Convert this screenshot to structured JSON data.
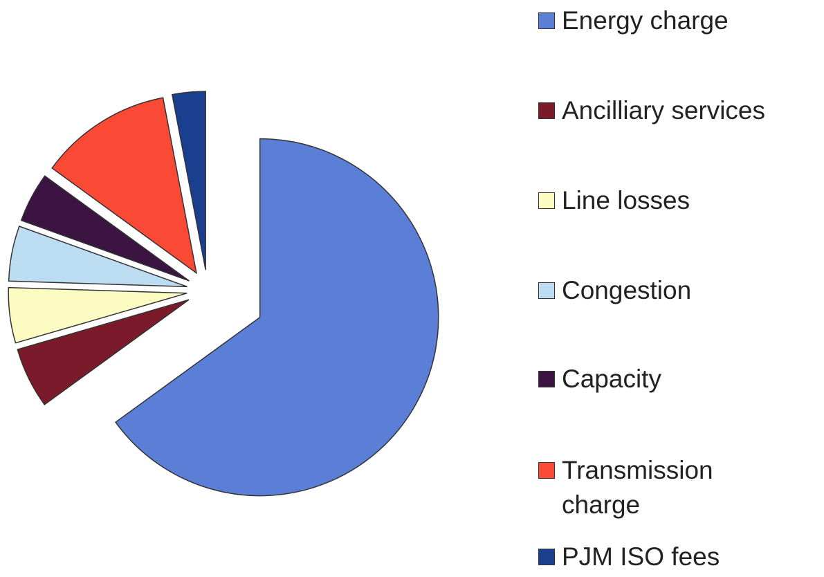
{
  "chart_data": {
    "type": "pie",
    "categories": [
      "Energy charge",
      "Ancilliary services",
      "Line losses",
      "Congestion",
      "Capacity",
      "Transmission charge",
      "PJM ISO fees"
    ],
    "values": [
      65,
      5.5,
      5,
      5,
      4.5,
      12,
      3
    ],
    "colors": [
      "#5b7fd6",
      "#7a1a2a",
      "#fbfbc2",
      "#bcdcf2",
      "#3b1442",
      "#fa4a36",
      "#1b3f8f"
    ],
    "exploded": true,
    "legend": "right"
  }
}
